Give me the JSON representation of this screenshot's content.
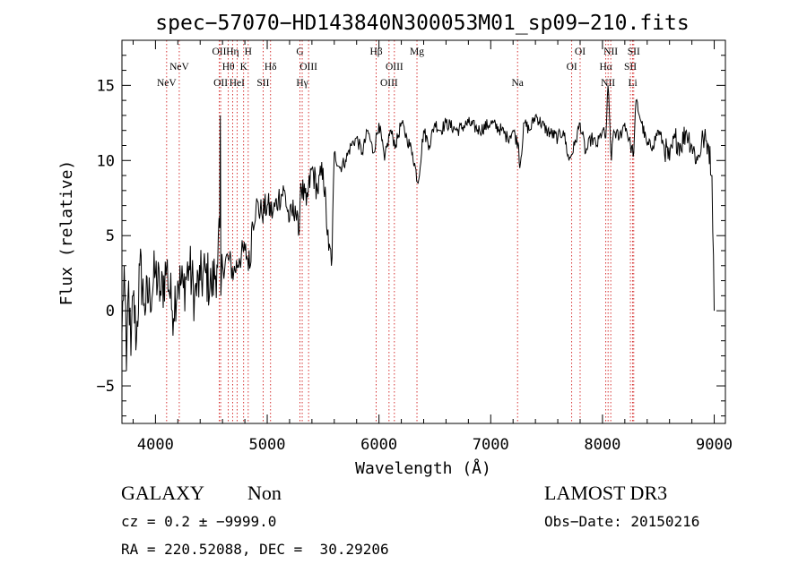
{
  "chart_data": {
    "type": "line",
    "title": "spec−57070−HD143840N300053M01_sp09−210.fits",
    "xlabel": "Wavelength (Å)",
    "ylabel": "Flux (relative)",
    "xlim": [
      3700,
      9100
    ],
    "ylim": [
      -7.5,
      18
    ],
    "xticks": [
      4000,
      5000,
      6000,
      7000,
      8000,
      9000
    ],
    "yticks": [
      -5,
      0,
      5,
      10,
      15
    ],
    "xtick_labels": [
      "4000",
      "5000",
      "6000",
      "7000",
      "8000",
      "9000"
    ],
    "ytick_labels": [
      "−5",
      "0",
      "5",
      "10",
      "15"
    ],
    "series": [
      {
        "name": "flux",
        "color": "#000000",
        "x": [
          3700,
          3720,
          3740,
          3760,
          3780,
          3800,
          3830,
          3860,
          3900,
          3950,
          4000,
          4050,
          4100,
          4150,
          4200,
          4250,
          4300,
          4350,
          4400,
          4450,
          4500,
          4550,
          4575,
          4580,
          4585,
          4600,
          4650,
          4700,
          4750,
          4800,
          4850,
          4860,
          4900,
          4950,
          5000,
          5050,
          5100,
          5150,
          5200,
          5250,
          5280,
          5300,
          5350,
          5400,
          5450,
          5500,
          5550,
          5580,
          5600,
          5650,
          5700,
          5750,
          5800,
          5850,
          5900,
          5950,
          6000,
          6050,
          6100,
          6150,
          6200,
          6250,
          6300,
          6350,
          6400,
          6450,
          6500,
          6550,
          6600,
          6700,
          6800,
          6900,
          7000,
          7100,
          7150,
          7200,
          7250,
          7260,
          7300,
          7350,
          7400,
          7500,
          7600,
          7650,
          7700,
          7750,
          7800,
          7850,
          7900,
          7950,
          8000,
          8030,
          8050,
          8080,
          8100,
          8150,
          8200,
          8250,
          8280,
          8300,
          8350,
          8400,
          8450,
          8500,
          8550,
          8600,
          8650,
          8700,
          8750,
          8800,
          8850,
          8900,
          8950,
          8980,
          9000
        ],
        "y": [
          -1.5,
          3,
          -4,
          2,
          -3,
          1,
          -2,
          3,
          0.5,
          1,
          2.5,
          1,
          3,
          0,
          2,
          1.5,
          3,
          1,
          2,
          2.5,
          1.5,
          3,
          5.5,
          13,
          1,
          3,
          3.5,
          2.5,
          3.5,
          4,
          3,
          5.5,
          7,
          6.5,
          7,
          6.5,
          7.5,
          8,
          6,
          7,
          5,
          8.5,
          7,
          9.5,
          8,
          9.5,
          4,
          3.5,
          10.5,
          9.5,
          10,
          11,
          11.5,
          10.5,
          12,
          10.5,
          12.5,
          10,
          12,
          11,
          12.5,
          11.5,
          10.5,
          8.5,
          12,
          11,
          12.5,
          12,
          12.5,
          12,
          12.5,
          12,
          12.5,
          12,
          11.5,
          12,
          11,
          9.5,
          12.5,
          12,
          13,
          12,
          11.5,
          12,
          10,
          11,
          12.5,
          10.5,
          11.5,
          11,
          12,
          11.5,
          15,
          10,
          12,
          11.5,
          12.5,
          11,
          10.5,
          14,
          12.5,
          11,
          11,
          12,
          11,
          10,
          11.5,
          11,
          12,
          11,
          10,
          11.5,
          11,
          9,
          0
        ]
      }
    ],
    "lines": [
      {
        "label": "NeV",
        "x": 4100,
        "tier": 3
      },
      {
        "label": "NeV",
        "x": 4213,
        "tier": 2
      },
      {
        "label": "OII",
        "x": 4570,
        "tier": 1
      },
      {
        "label": "OII",
        "x": 4583,
        "tier": 3
      },
      {
        "label": "Hθ",
        "x": 4652,
        "tier": 2
      },
      {
        "label": "Hη",
        "x": 4690,
        "tier": 1
      },
      {
        "label": "HeI",
        "x": 4730,
        "tier": 3
      },
      {
        "label": "K",
        "x": 4789,
        "tier": 2
      },
      {
        "label": "H",
        "x": 4830,
        "tier": 1
      },
      {
        "label": "SII",
        "x": 4963,
        "tier": 3
      },
      {
        "label": "Hδ",
        "x": 5030,
        "tier": 2
      },
      {
        "label": "G",
        "x": 5293,
        "tier": 1
      },
      {
        "label": "Hγ",
        "x": 5313,
        "tier": 3
      },
      {
        "label": "OIII",
        "x": 5370,
        "tier": 2
      },
      {
        "label": "Hβ",
        "x": 5975,
        "tier": 1
      },
      {
        "label": "OIII",
        "x": 6090,
        "tier": 3
      },
      {
        "label": "OIII",
        "x": 6138,
        "tier": 2
      },
      {
        "label": "Mg",
        "x": 6340,
        "tier": 1
      },
      {
        "label": "Na",
        "x": 7240,
        "tier": 3
      },
      {
        "label": "OI",
        "x": 7725,
        "tier": 2
      },
      {
        "label": "OI",
        "x": 7800,
        "tier": 1
      },
      {
        "label": "Hα",
        "x": 8030,
        "tier": 2
      },
      {
        "label": "NII",
        "x": 8050,
        "tier": 3
      },
      {
        "label": "NII",
        "x": 8074,
        "tier": 1
      },
      {
        "label": "SII",
        "x": 8250,
        "tier": 2
      },
      {
        "label": "Li",
        "x": 8270,
        "tier": 3
      },
      {
        "label": "SII",
        "x": 8280,
        "tier": 1
      }
    ]
  },
  "footer": {
    "class_label": "GALAXY",
    "subclass_label": "Non",
    "survey_label": "LAMOST DR3",
    "cz_text": "cz = 0.2 ± −9999.0",
    "obs_date_text": "Obs−Date: 20150216",
    "radec_text": "RA = 220.52088, DEC =  30.29206"
  }
}
